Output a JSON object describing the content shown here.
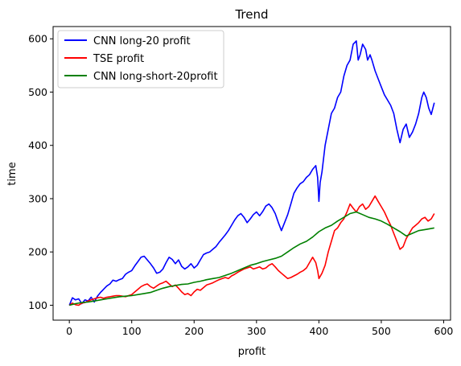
{
  "chart_data": {
    "type": "line",
    "title": "Trend",
    "xlabel": "profit",
    "ylabel": "time",
    "xlim": [
      -26,
      611
    ],
    "ylim": [
      72,
      623
    ],
    "xticks": [
      0,
      100,
      200,
      300,
      400,
      500,
      600
    ],
    "yticks": [
      100,
      200,
      300,
      400,
      500,
      600
    ],
    "legend_position": "upper-left",
    "series": [
      {
        "name": "CNN long-20 profit",
        "color": "#0000ff",
        "points": [
          [
            0,
            100
          ],
          [
            5,
            114
          ],
          [
            10,
            110
          ],
          [
            15,
            112
          ],
          [
            20,
            103
          ],
          [
            25,
            110
          ],
          [
            30,
            108
          ],
          [
            35,
            115
          ],
          [
            40,
            106
          ],
          [
            45,
            117
          ],
          [
            50,
            124
          ],
          [
            55,
            130
          ],
          [
            60,
            136
          ],
          [
            65,
            140
          ],
          [
            70,
            147
          ],
          [
            75,
            145
          ],
          [
            80,
            148
          ],
          [
            85,
            150
          ],
          [
            90,
            158
          ],
          [
            95,
            162
          ],
          [
            100,
            165
          ],
          [
            105,
            174
          ],
          [
            110,
            182
          ],
          [
            115,
            190
          ],
          [
            120,
            192
          ],
          [
            125,
            185
          ],
          [
            130,
            178
          ],
          [
            135,
            170
          ],
          [
            140,
            160
          ],
          [
            145,
            162
          ],
          [
            150,
            168
          ],
          [
            155,
            180
          ],
          [
            160,
            190
          ],
          [
            165,
            186
          ],
          [
            170,
            178
          ],
          [
            175,
            185
          ],
          [
            180,
            173
          ],
          [
            185,
            168
          ],
          [
            190,
            172
          ],
          [
            195,
            178
          ],
          [
            200,
            170
          ],
          [
            205,
            175
          ],
          [
            210,
            185
          ],
          [
            215,
            195
          ],
          [
            220,
            198
          ],
          [
            225,
            200
          ],
          [
            230,
            205
          ],
          [
            235,
            210
          ],
          [
            240,
            218
          ],
          [
            245,
            225
          ],
          [
            250,
            232
          ],
          [
            255,
            240
          ],
          [
            260,
            250
          ],
          [
            265,
            260
          ],
          [
            270,
            268
          ],
          [
            275,
            272
          ],
          [
            280,
            265
          ],
          [
            285,
            255
          ],
          [
            290,
            262
          ],
          [
            295,
            270
          ],
          [
            300,
            275
          ],
          [
            305,
            268
          ],
          [
            310,
            276
          ],
          [
            315,
            286
          ],
          [
            320,
            290
          ],
          [
            325,
            283
          ],
          [
            330,
            272
          ],
          [
            335,
            255
          ],
          [
            340,
            240
          ],
          [
            345,
            255
          ],
          [
            350,
            270
          ],
          [
            355,
            290
          ],
          [
            360,
            310
          ],
          [
            365,
            320
          ],
          [
            370,
            328
          ],
          [
            375,
            332
          ],
          [
            380,
            340
          ],
          [
            385,
            345
          ],
          [
            390,
            355
          ],
          [
            395,
            362
          ],
          [
            398,
            340
          ],
          [
            400,
            295
          ],
          [
            402,
            330
          ],
          [
            405,
            350
          ],
          [
            410,
            400
          ],
          [
            415,
            430
          ],
          [
            420,
            460
          ],
          [
            425,
            470
          ],
          [
            430,
            490
          ],
          [
            435,
            500
          ],
          [
            440,
            530
          ],
          [
            445,
            550
          ],
          [
            450,
            560
          ],
          [
            455,
            590
          ],
          [
            460,
            596
          ],
          [
            463,
            560
          ],
          [
            466,
            570
          ],
          [
            470,
            590
          ],
          [
            475,
            580
          ],
          [
            478,
            560
          ],
          [
            482,
            570
          ],
          [
            485,
            560
          ],
          [
            490,
            540
          ],
          [
            495,
            525
          ],
          [
            500,
            510
          ],
          [
            505,
            495
          ],
          [
            510,
            485
          ],
          [
            515,
            475
          ],
          [
            520,
            460
          ],
          [
            525,
            430
          ],
          [
            530,
            405
          ],
          [
            535,
            430
          ],
          [
            540,
            440
          ],
          [
            545,
            415
          ],
          [
            550,
            425
          ],
          [
            555,
            440
          ],
          [
            560,
            460
          ],
          [
            565,
            490
          ],
          [
            568,
            500
          ],
          [
            572,
            490
          ],
          [
            576,
            470
          ],
          [
            580,
            458
          ],
          [
            585,
            480
          ]
        ]
      },
      {
        "name": "TSE profit",
        "color": "#ff0000",
        "points": [
          [
            0,
            100
          ],
          [
            5,
            104
          ],
          [
            10,
            101
          ],
          [
            15,
            100
          ],
          [
            20,
            104
          ],
          [
            25,
            105
          ],
          [
            30,
            108
          ],
          [
            35,
            110
          ],
          [
            40,
            112
          ],
          [
            45,
            114
          ],
          [
            50,
            115
          ],
          [
            55,
            113
          ],
          [
            60,
            115
          ],
          [
            65,
            116
          ],
          [
            70,
            117
          ],
          [
            75,
            118
          ],
          [
            80,
            118
          ],
          [
            85,
            117
          ],
          [
            90,
            116
          ],
          [
            95,
            118
          ],
          [
            100,
            120
          ],
          [
            105,
            125
          ],
          [
            110,
            130
          ],
          [
            115,
            135
          ],
          [
            120,
            138
          ],
          [
            125,
            140
          ],
          [
            130,
            135
          ],
          [
            135,
            132
          ],
          [
            140,
            136
          ],
          [
            145,
            140
          ],
          [
            150,
            142
          ],
          [
            155,
            145
          ],
          [
            160,
            140
          ],
          [
            165,
            135
          ],
          [
            170,
            138
          ],
          [
            175,
            132
          ],
          [
            180,
            125
          ],
          [
            185,
            120
          ],
          [
            190,
            122
          ],
          [
            195,
            118
          ],
          [
            200,
            125
          ],
          [
            205,
            130
          ],
          [
            210,
            128
          ],
          [
            215,
            133
          ],
          [
            220,
            138
          ],
          [
            225,
            140
          ],
          [
            230,
            142
          ],
          [
            235,
            145
          ],
          [
            240,
            148
          ],
          [
            245,
            150
          ],
          [
            250,
            152
          ],
          [
            255,
            150
          ],
          [
            260,
            155
          ],
          [
            265,
            158
          ],
          [
            270,
            162
          ],
          [
            275,
            165
          ],
          [
            280,
            168
          ],
          [
            285,
            170
          ],
          [
            290,
            172
          ],
          [
            295,
            168
          ],
          [
            300,
            170
          ],
          [
            305,
            172
          ],
          [
            310,
            168
          ],
          [
            315,
            170
          ],
          [
            320,
            175
          ],
          [
            325,
            178
          ],
          [
            330,
            172
          ],
          [
            335,
            165
          ],
          [
            340,
            160
          ],
          [
            345,
            155
          ],
          [
            350,
            150
          ],
          [
            355,
            152
          ],
          [
            360,
            155
          ],
          [
            365,
            158
          ],
          [
            370,
            162
          ],
          [
            375,
            165
          ],
          [
            380,
            170
          ],
          [
            385,
            180
          ],
          [
            390,
            190
          ],
          [
            395,
            180
          ],
          [
            398,
            165
          ],
          [
            400,
            150
          ],
          [
            405,
            160
          ],
          [
            410,
            175
          ],
          [
            415,
            200
          ],
          [
            420,
            220
          ],
          [
            425,
            240
          ],
          [
            430,
            245
          ],
          [
            435,
            255
          ],
          [
            440,
            262
          ],
          [
            445,
            275
          ],
          [
            450,
            290
          ],
          [
            455,
            282
          ],
          [
            460,
            275
          ],
          [
            465,
            285
          ],
          [
            470,
            290
          ],
          [
            475,
            280
          ],
          [
            480,
            285
          ],
          [
            485,
            295
          ],
          [
            490,
            305
          ],
          [
            495,
            295
          ],
          [
            500,
            285
          ],
          [
            505,
            275
          ],
          [
            510,
            262
          ],
          [
            515,
            250
          ],
          [
            520,
            235
          ],
          [
            525,
            220
          ],
          [
            530,
            205
          ],
          [
            535,
            210
          ],
          [
            540,
            225
          ],
          [
            545,
            235
          ],
          [
            550,
            245
          ],
          [
            555,
            250
          ],
          [
            560,
            255
          ],
          [
            565,
            262
          ],
          [
            570,
            265
          ],
          [
            575,
            258
          ],
          [
            580,
            262
          ],
          [
            585,
            272
          ]
        ]
      },
      {
        "name": "CNN long-short-20profit",
        "color": "#008000",
        "points": [
          [
            0,
            100
          ],
          [
            10,
            103
          ],
          [
            20,
            105
          ],
          [
            30,
            106
          ],
          [
            40,
            108
          ],
          [
            50,
            110
          ],
          [
            60,
            112
          ],
          [
            70,
            114
          ],
          [
            80,
            116
          ],
          [
            90,
            117
          ],
          [
            100,
            118
          ],
          [
            110,
            120
          ],
          [
            120,
            122
          ],
          [
            130,
            124
          ],
          [
            140,
            128
          ],
          [
            150,
            132
          ],
          [
            160,
            135
          ],
          [
            170,
            137
          ],
          [
            180,
            139
          ],
          [
            190,
            140
          ],
          [
            200,
            143
          ],
          [
            210,
            145
          ],
          [
            220,
            148
          ],
          [
            230,
            150
          ],
          [
            240,
            152
          ],
          [
            250,
            156
          ],
          [
            260,
            160
          ],
          [
            270,
            165
          ],
          [
            280,
            170
          ],
          [
            290,
            175
          ],
          [
            300,
            178
          ],
          [
            310,
            182
          ],
          [
            320,
            185
          ],
          [
            330,
            188
          ],
          [
            340,
            192
          ],
          [
            350,
            200
          ],
          [
            360,
            208
          ],
          [
            370,
            215
          ],
          [
            380,
            220
          ],
          [
            390,
            228
          ],
          [
            400,
            238
          ],
          [
            410,
            245
          ],
          [
            420,
            250
          ],
          [
            430,
            258
          ],
          [
            440,
            265
          ],
          [
            450,
            272
          ],
          [
            460,
            275
          ],
          [
            470,
            270
          ],
          [
            480,
            265
          ],
          [
            490,
            262
          ],
          [
            500,
            258
          ],
          [
            510,
            252
          ],
          [
            520,
            245
          ],
          [
            530,
            238
          ],
          [
            540,
            230
          ],
          [
            550,
            235
          ],
          [
            560,
            240
          ],
          [
            570,
            242
          ],
          [
            580,
            244
          ],
          [
            585,
            245
          ]
        ]
      }
    ]
  }
}
